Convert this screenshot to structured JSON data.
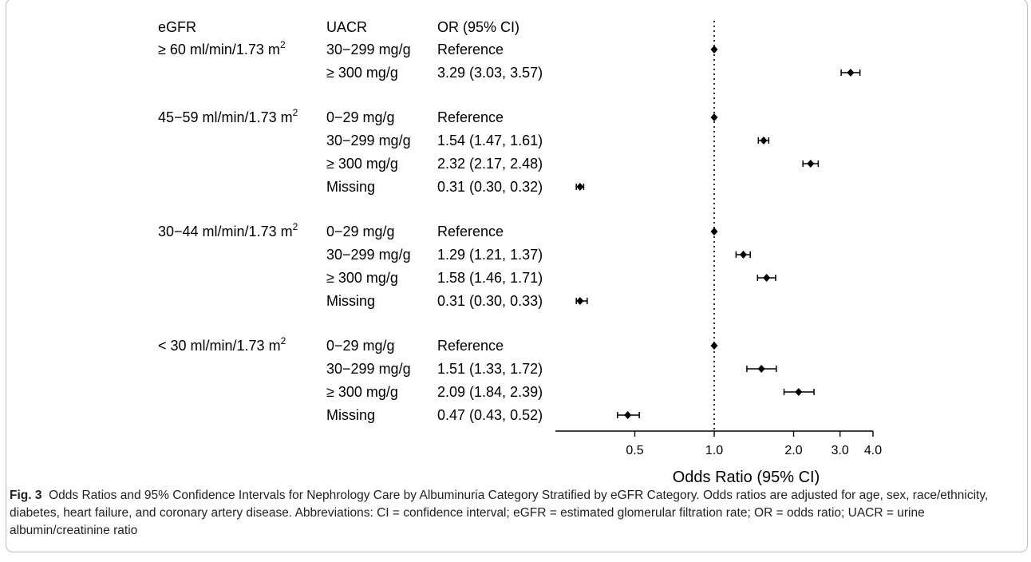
{
  "chart_data": {
    "type": "forest",
    "headers": {
      "egfr": "eGFR",
      "uacr": "UACR",
      "or": "OR (95% CI)"
    },
    "groups": [
      {
        "egfr_label": "≥ 60 ml/min/1.73 m",
        "egfr_sup": "2",
        "rows": [
          {
            "uacr": "30−299 mg/g",
            "or_text": "Reference",
            "or": 1.0,
            "lo": null,
            "hi": null
          },
          {
            "uacr": "≥ 300 mg/g",
            "or_text": "3.29 (3.03, 3.57)",
            "or": 3.29,
            "lo": 3.03,
            "hi": 3.57
          }
        ]
      },
      {
        "egfr_label": "45−59 ml/min/1.73 m",
        "egfr_sup": "2",
        "rows": [
          {
            "uacr": "0−29 mg/g",
            "or_text": "Reference",
            "or": 1.0,
            "lo": null,
            "hi": null
          },
          {
            "uacr": "30−299 mg/g",
            "or_text": "1.54 (1.47, 1.61)",
            "or": 1.54,
            "lo": 1.47,
            "hi": 1.61
          },
          {
            "uacr": "≥ 300 mg/g",
            "or_text": "2.32 (2.17, 2.48)",
            "or": 2.32,
            "lo": 2.17,
            "hi": 2.48
          },
          {
            "uacr": "Missing",
            "or_text": "0.31 (0.30, 0.32)",
            "or": 0.31,
            "lo": 0.3,
            "hi": 0.32
          }
        ]
      },
      {
        "egfr_label": "30−44 ml/min/1.73 m",
        "egfr_sup": "2",
        "rows": [
          {
            "uacr": "0−29 mg/g",
            "or_text": "Reference",
            "or": 1.0,
            "lo": null,
            "hi": null
          },
          {
            "uacr": "30−299 mg/g",
            "or_text": "1.29 (1.21, 1.37)",
            "or": 1.29,
            "lo": 1.21,
            "hi": 1.37
          },
          {
            "uacr": "≥ 300 mg/g",
            "or_text": "1.58 (1.46, 1.71)",
            "or": 1.58,
            "lo": 1.46,
            "hi": 1.71
          },
          {
            "uacr": "Missing",
            "or_text": "0.31 (0.30, 0.33)",
            "or": 0.31,
            "lo": 0.3,
            "hi": 0.33
          }
        ]
      },
      {
        "egfr_label": "< 30 ml/min/1.73 m",
        "egfr_sup": "2",
        "rows": [
          {
            "uacr": "0−29 mg/g",
            "or_text": "Reference",
            "or": 1.0,
            "lo": null,
            "hi": null
          },
          {
            "uacr": "30−299 mg/g",
            "or_text": "1.51 (1.33, 1.72)",
            "or": 1.51,
            "lo": 1.33,
            "hi": 1.72
          },
          {
            "uacr": "≥ 300 mg/g",
            "or_text": "2.09 (1.84, 2.39)",
            "or": 2.09,
            "lo": 1.84,
            "hi": 2.39
          },
          {
            "uacr": "Missing",
            "or_text": "0.47 (0.43, 0.52)",
            "or": 0.47,
            "lo": 0.43,
            "hi": 0.52
          }
        ]
      }
    ],
    "x_axis": {
      "scale": "log",
      "xlim": [
        0.25,
        4.0
      ],
      "ticks": [
        0.5,
        1.0,
        2.0,
        3.0,
        4.0
      ],
      "tick_labels": [
        "0.5",
        "1.0",
        "2.0",
        "3.0",
        "4.0"
      ],
      "label": "Odds Ratio (95% CI)"
    },
    "reference_line": 1.0
  },
  "caption": {
    "label": "Fig. 3",
    "text": "Odds Ratios and 95% Confidence Intervals for Nephrology Care by Albuminuria Category Stratified by eGFR Category. Odds ratios are adjusted for age, sex, race/ethnicity, diabetes, heart failure, and coronary artery disease. Abbreviations: CI = confidence interval; eGFR = estimated glomerular filtration rate; OR = odds ratio; UACR = urine albumin/creatinine ratio"
  }
}
